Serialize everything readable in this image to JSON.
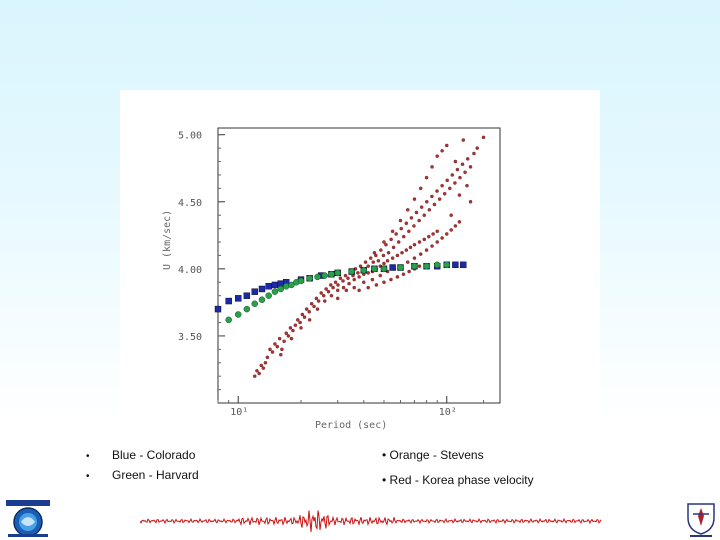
{
  "chart_data": {
    "type": "scatter",
    "xlabel": "Period (sec)",
    "ylabel": "U (km/sec)",
    "xscale": "log",
    "xlim": [
      8,
      180
    ],
    "ylim": [
      3.0,
      5.05
    ],
    "yticks": [
      "5.00",
      "4.50",
      "4.00",
      "3.50"
    ],
    "ytick_values": [
      5.0,
      4.5,
      4.0,
      3.5
    ],
    "xticks": [
      "10¹",
      "10²"
    ],
    "xtick_values": [
      10,
      100
    ],
    "grid": false,
    "series": [
      {
        "name": "Red",
        "color": "#b03030",
        "points": [
          [
            12.0,
            3.2
          ],
          [
            12.3,
            3.24
          ],
          [
            12.6,
            3.22
          ],
          [
            12.9,
            3.28
          ],
          [
            13.2,
            3.26
          ],
          [
            13.5,
            3.3
          ],
          [
            13.8,
            3.34
          ],
          [
            14.2,
            3.4
          ],
          [
            14.6,
            3.38
          ],
          [
            15.0,
            3.44
          ],
          [
            15.4,
            3.42
          ],
          [
            15.8,
            3.48
          ],
          [
            16.2,
            3.4
          ],
          [
            16.6,
            3.46
          ],
          [
            17.0,
            3.52
          ],
          [
            17.4,
            3.5
          ],
          [
            17.8,
            3.56
          ],
          [
            18.3,
            3.54
          ],
          [
            18.8,
            3.58
          ],
          [
            19.3,
            3.62
          ],
          [
            19.8,
            3.6
          ],
          [
            20.3,
            3.66
          ],
          [
            20.8,
            3.64
          ],
          [
            21.3,
            3.7
          ],
          [
            21.9,
            3.68
          ],
          [
            22.5,
            3.74
          ],
          [
            23.1,
            3.72
          ],
          [
            23.7,
            3.78
          ],
          [
            24.3,
            3.76
          ],
          [
            25.0,
            3.82
          ],
          [
            25.7,
            3.8
          ],
          [
            26.4,
            3.85
          ],
          [
            27.1,
            3.83
          ],
          [
            27.8,
            3.88
          ],
          [
            28.5,
            3.86
          ],
          [
            29.3,
            3.9
          ],
          [
            30.1,
            3.88
          ],
          [
            30.9,
            3.93
          ],
          [
            31.8,
            3.91
          ],
          [
            32.7,
            3.95
          ],
          [
            33.6,
            3.93
          ],
          [
            34.5,
            3.98
          ],
          [
            35.5,
            3.95
          ],
          [
            36.5,
            4.0
          ],
          [
            37.5,
            3.97
          ],
          [
            38.6,
            4.02
          ],
          [
            39.7,
            3.99
          ],
          [
            40.8,
            4.05
          ],
          [
            42.0,
            4.02
          ],
          [
            43.2,
            4.08
          ],
          [
            44.4,
            4.05
          ],
          [
            45.7,
            4.1
          ],
          [
            47.0,
            4.06
          ],
          [
            48.3,
            4.14
          ],
          [
            49.7,
            4.1
          ],
          [
            51.1,
            4.18
          ],
          [
            52.6,
            4.12
          ],
          [
            54.1,
            4.22
          ],
          [
            55.6,
            4.16
          ],
          [
            57.2,
            4.26
          ],
          [
            58.8,
            4.2
          ],
          [
            60.5,
            4.3
          ],
          [
            62.2,
            4.24
          ],
          [
            64.0,
            4.34
          ],
          [
            65.8,
            4.28
          ],
          [
            67.7,
            4.38
          ],
          [
            69.6,
            4.32
          ],
          [
            71.6,
            4.42
          ],
          [
            73.7,
            4.36
          ],
          [
            75.8,
            4.46
          ],
          [
            78.0,
            4.4
          ],
          [
            80.2,
            4.5
          ],
          [
            82.5,
            4.44
          ],
          [
            84.9,
            4.54
          ],
          [
            87.3,
            4.48
          ],
          [
            89.8,
            4.58
          ],
          [
            92.4,
            4.52
          ],
          [
            95.0,
            4.62
          ],
          [
            97.7,
            4.56
          ],
          [
            100.5,
            4.66
          ],
          [
            103.4,
            4.6
          ],
          [
            106.3,
            4.7
          ],
          [
            109.4,
            4.64
          ],
          [
            112.5,
            4.74
          ],
          [
            115.7,
            4.68
          ],
          [
            119.0,
            4.78
          ],
          [
            122.4,
            4.72
          ],
          [
            126.0,
            4.82
          ],
          [
            130.0,
            4.76
          ],
          [
            135.0,
            4.86
          ],
          [
            16.0,
            3.36
          ],
          [
            18.0,
            3.48
          ],
          [
            20.0,
            3.56
          ],
          [
            22.0,
            3.62
          ],
          [
            24.0,
            3.7
          ],
          [
            26.0,
            3.76
          ],
          [
            28.0,
            3.8
          ],
          [
            30.0,
            3.84
          ],
          [
            32.0,
            3.86
          ],
          [
            34.0,
            3.89
          ],
          [
            36.0,
            3.92
          ],
          [
            38.0,
            3.94
          ],
          [
            40.0,
            3.96
          ],
          [
            42.0,
            3.97
          ],
          [
            44.0,
            3.98
          ],
          [
            46.0,
            4.0
          ],
          [
            48.0,
            4.02
          ],
          [
            50.0,
            4.04
          ],
          [
            52.0,
            4.06
          ],
          [
            55.0,
            4.08
          ],
          [
            58.0,
            4.1
          ],
          [
            61.0,
            4.12
          ],
          [
            64.0,
            4.14
          ],
          [
            67.0,
            4.16
          ],
          [
            70.0,
            4.18
          ],
          [
            74.0,
            4.2
          ],
          [
            78.0,
            4.22
          ],
          [
            82.0,
            4.24
          ],
          [
            86.0,
            4.26
          ],
          [
            90.0,
            4.28
          ],
          [
            30.0,
            3.78
          ],
          [
            33.0,
            3.84
          ],
          [
            36.0,
            3.86
          ],
          [
            40.0,
            3.9
          ],
          [
            44.0,
            3.92
          ],
          [
            48.0,
            3.95
          ],
          [
            52.0,
            3.98
          ],
          [
            56.0,
            4.0
          ],
          [
            60.0,
            4.02
          ],
          [
            65.0,
            4.05
          ],
          [
            70.0,
            4.08
          ],
          [
            75.0,
            4.11
          ],
          [
            80.0,
            4.14
          ],
          [
            85.0,
            4.17
          ],
          [
            90.0,
            4.2
          ],
          [
            95.0,
            4.23
          ],
          [
            100.0,
            4.26
          ],
          [
            105.0,
            4.29
          ],
          [
            110.0,
            4.32
          ],
          [
            115.0,
            4.35
          ],
          [
            45.0,
            4.12
          ],
          [
            50.0,
            4.2
          ],
          [
            55.0,
            4.28
          ],
          [
            60.0,
            4.36
          ],
          [
            65.0,
            4.44
          ],
          [
            70.0,
            4.52
          ],
          [
            75.0,
            4.6
          ],
          [
            80.0,
            4.68
          ],
          [
            85.0,
            4.76
          ],
          [
            90.0,
            4.84
          ],
          [
            38.0,
            3.84
          ],
          [
            42.0,
            3.86
          ],
          [
            46.0,
            3.88
          ],
          [
            50.0,
            3.9
          ],
          [
            54.0,
            3.92
          ],
          [
            58.0,
            3.94
          ],
          [
            62.0,
            3.96
          ],
          [
            66.0,
            3.98
          ],
          [
            70.0,
            4.0
          ],
          [
            74.0,
            4.02
          ],
          [
            95.0,
            4.88
          ],
          [
            100.0,
            4.92
          ],
          [
            110.0,
            4.8
          ],
          [
            120.0,
            4.96
          ],
          [
            150.0,
            4.98
          ],
          [
            140.0,
            4.9
          ],
          [
            105.0,
            4.4
          ],
          [
            115.0,
            4.55
          ],
          [
            125.0,
            4.62
          ],
          [
            130.0,
            4.5
          ]
        ]
      },
      {
        "name": "Blue - Colorado",
        "color": "#1c2aa8",
        "points": [
          [
            8.0,
            3.7
          ],
          [
            9.0,
            3.76
          ],
          [
            10.0,
            3.78
          ],
          [
            11.0,
            3.8
          ],
          [
            12.0,
            3.83
          ],
          [
            13.0,
            3.85
          ],
          [
            14.0,
            3.87
          ],
          [
            15.0,
            3.88
          ],
          [
            16.0,
            3.89
          ],
          [
            17.0,
            3.9
          ],
          [
            20.0,
            3.92
          ],
          [
            22.0,
            3.93
          ],
          [
            25.0,
            3.95
          ],
          [
            28.0,
            3.96
          ],
          [
            30.0,
            3.97
          ],
          [
            35.0,
            3.98
          ],
          [
            40.0,
            3.99
          ],
          [
            45.0,
            4.0
          ],
          [
            50.0,
            4.0
          ],
          [
            55.0,
            4.01
          ],
          [
            60.0,
            4.01
          ],
          [
            70.0,
            4.02
          ],
          [
            80.0,
            4.02
          ],
          [
            90.0,
            4.02
          ],
          [
            100.0,
            4.03
          ],
          [
            110.0,
            4.03
          ],
          [
            120.0,
            4.03
          ]
        ]
      },
      {
        "name": "Green - Harvard",
        "color": "#2aa04a",
        "points": [
          [
            9.0,
            3.62
          ],
          [
            10.0,
            3.66
          ],
          [
            11.0,
            3.7
          ],
          [
            12.0,
            3.74
          ],
          [
            13.0,
            3.77
          ],
          [
            14.0,
            3.8
          ],
          [
            15.0,
            3.83
          ],
          [
            16.0,
            3.85
          ],
          [
            17.0,
            3.87
          ],
          [
            18.0,
            3.88
          ],
          [
            19.0,
            3.9
          ],
          [
            20.0,
            3.91
          ],
          [
            22.0,
            3.93
          ],
          [
            24.0,
            3.94
          ],
          [
            26.0,
            3.95
          ],
          [
            28.0,
            3.96
          ],
          [
            30.0,
            3.97
          ],
          [
            35.0,
            3.98
          ],
          [
            40.0,
            3.99
          ],
          [
            45.0,
            4.0
          ],
          [
            50.0,
            4.0
          ],
          [
            60.0,
            4.01
          ],
          [
            70.0,
            4.02
          ],
          [
            80.0,
            4.02
          ],
          [
            90.0,
            4.03
          ],
          [
            100.0,
            4.03
          ]
        ]
      }
    ]
  },
  "legend": {
    "bullet": "•",
    "left": [
      "Blue - Colorado",
      "Green - Harvard"
    ],
    "right": [
      "• Orange - Stevens",
      "• Red - Korea phase velocity"
    ]
  },
  "logos": {
    "left_icon": "university-seal-icon",
    "right_icon": "crest-icon"
  },
  "colors": {
    "background_top": "#d9f5fd",
    "seismogram": "#cc1111"
  }
}
